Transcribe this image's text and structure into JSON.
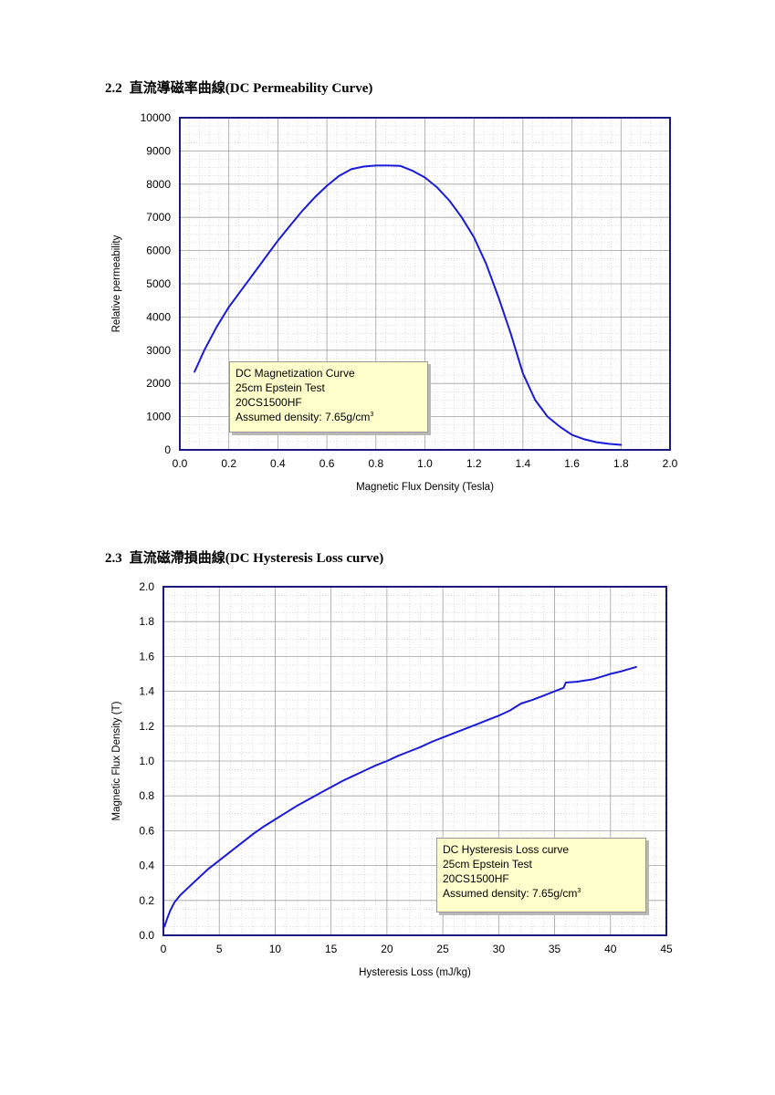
{
  "section1": {
    "number": "2.2",
    "title": "直流導磁率曲線(DC Permeability Curve)"
  },
  "section2": {
    "number": "2.3",
    "title": "直流磁滯損曲線(DC Hysteresis Loss curve)"
  },
  "note1": {
    "line1": "DC Magnetization Curve",
    "line2": "25cm Epstein Test",
    "line3": "20CS1500HF",
    "line4": "Assumed density: 7.65g/cm",
    "sup": "3"
  },
  "note2": {
    "line1": "DC Hysteresis Loss curve",
    "line2": "25cm Epstein Test",
    "line3": "20CS1500HF",
    "line4": "Assumed density: 7.65g/cm",
    "sup": "3"
  },
  "colors": {
    "curve": "#1a1adc",
    "frame": "#1a1a80",
    "grid": "#a0a0a0",
    "note_bg": "#ffffcc"
  },
  "chart_data": [
    {
      "type": "line",
      "title": "",
      "xlabel": "Magnetic Flux Density (Tesla)",
      "ylabel": "Relative permeability",
      "xlim": [
        0,
        2.0
      ],
      "ylim": [
        0,
        10000
      ],
      "xticks": [
        "0.0",
        "0.2",
        "0.4",
        "0.6",
        "0.8",
        "1.0",
        "1.2",
        "1.4",
        "1.6",
        "1.8",
        "2.0"
      ],
      "yticks": [
        "0",
        "1000",
        "2000",
        "3000",
        "4000",
        "5000",
        "6000",
        "7000",
        "8000",
        "9000",
        "10000"
      ],
      "grid": true,
      "x": [
        0.06,
        0.1,
        0.15,
        0.2,
        0.25,
        0.3,
        0.35,
        0.4,
        0.45,
        0.5,
        0.55,
        0.6,
        0.65,
        0.7,
        0.75,
        0.8,
        0.85,
        0.9,
        0.95,
        1.0,
        1.05,
        1.1,
        1.15,
        1.2,
        1.25,
        1.3,
        1.35,
        1.4,
        1.45,
        1.5,
        1.55,
        1.6,
        1.65,
        1.7,
        1.75,
        1.8
      ],
      "y": [
        2350,
        3000,
        3700,
        4300,
        4800,
        5300,
        5800,
        6300,
        6750,
        7200,
        7600,
        7950,
        8250,
        8450,
        8530,
        8560,
        8560,
        8550,
        8400,
        8200,
        7900,
        7500,
        7000,
        6400,
        5600,
        4600,
        3500,
        2300,
        1500,
        1000,
        700,
        450,
        320,
        230,
        180,
        150
      ]
    },
    {
      "type": "line",
      "title": "",
      "xlabel": "Hysteresis Loss (mJ/kg)",
      "ylabel": "Magnetic Flux Density (T)",
      "xlim": [
        0,
        45
      ],
      "ylim": [
        0,
        2.0
      ],
      "xticks": [
        "0",
        "5",
        "10",
        "15",
        "20",
        "25",
        "30",
        "35",
        "40",
        "45"
      ],
      "yticks": [
        "0.0",
        "0.2",
        "0.4",
        "0.6",
        "0.8",
        "1.0",
        "1.2",
        "1.4",
        "1.6",
        "1.8",
        "2.0"
      ],
      "grid": true,
      "x": [
        0.1,
        0.3,
        0.6,
        1,
        1.5,
        2,
        3,
        4,
        5,
        6,
        7,
        8,
        9,
        10,
        11,
        12,
        13,
        14,
        15,
        16,
        17,
        18,
        19,
        20,
        21,
        22,
        23,
        24,
        25,
        26,
        27,
        28,
        29,
        30,
        30.5,
        31,
        32,
        33,
        34,
        35,
        35.8,
        36,
        37,
        37.5,
        38,
        38.5,
        39,
        39.5,
        40,
        41,
        42.3
      ],
      "y": [
        0.05,
        0.09,
        0.14,
        0.19,
        0.23,
        0.26,
        0.32,
        0.38,
        0.43,
        0.48,
        0.53,
        0.58,
        0.625,
        0.665,
        0.705,
        0.745,
        0.78,
        0.815,
        0.85,
        0.885,
        0.915,
        0.945,
        0.975,
        1.0,
        1.03,
        1.055,
        1.08,
        1.11,
        1.135,
        1.16,
        1.185,
        1.21,
        1.235,
        1.26,
        1.275,
        1.29,
        1.33,
        1.35,
        1.375,
        1.4,
        1.42,
        1.45,
        1.455,
        1.46,
        1.465,
        1.47,
        1.48,
        1.49,
        1.5,
        1.515,
        1.54
      ]
    }
  ]
}
